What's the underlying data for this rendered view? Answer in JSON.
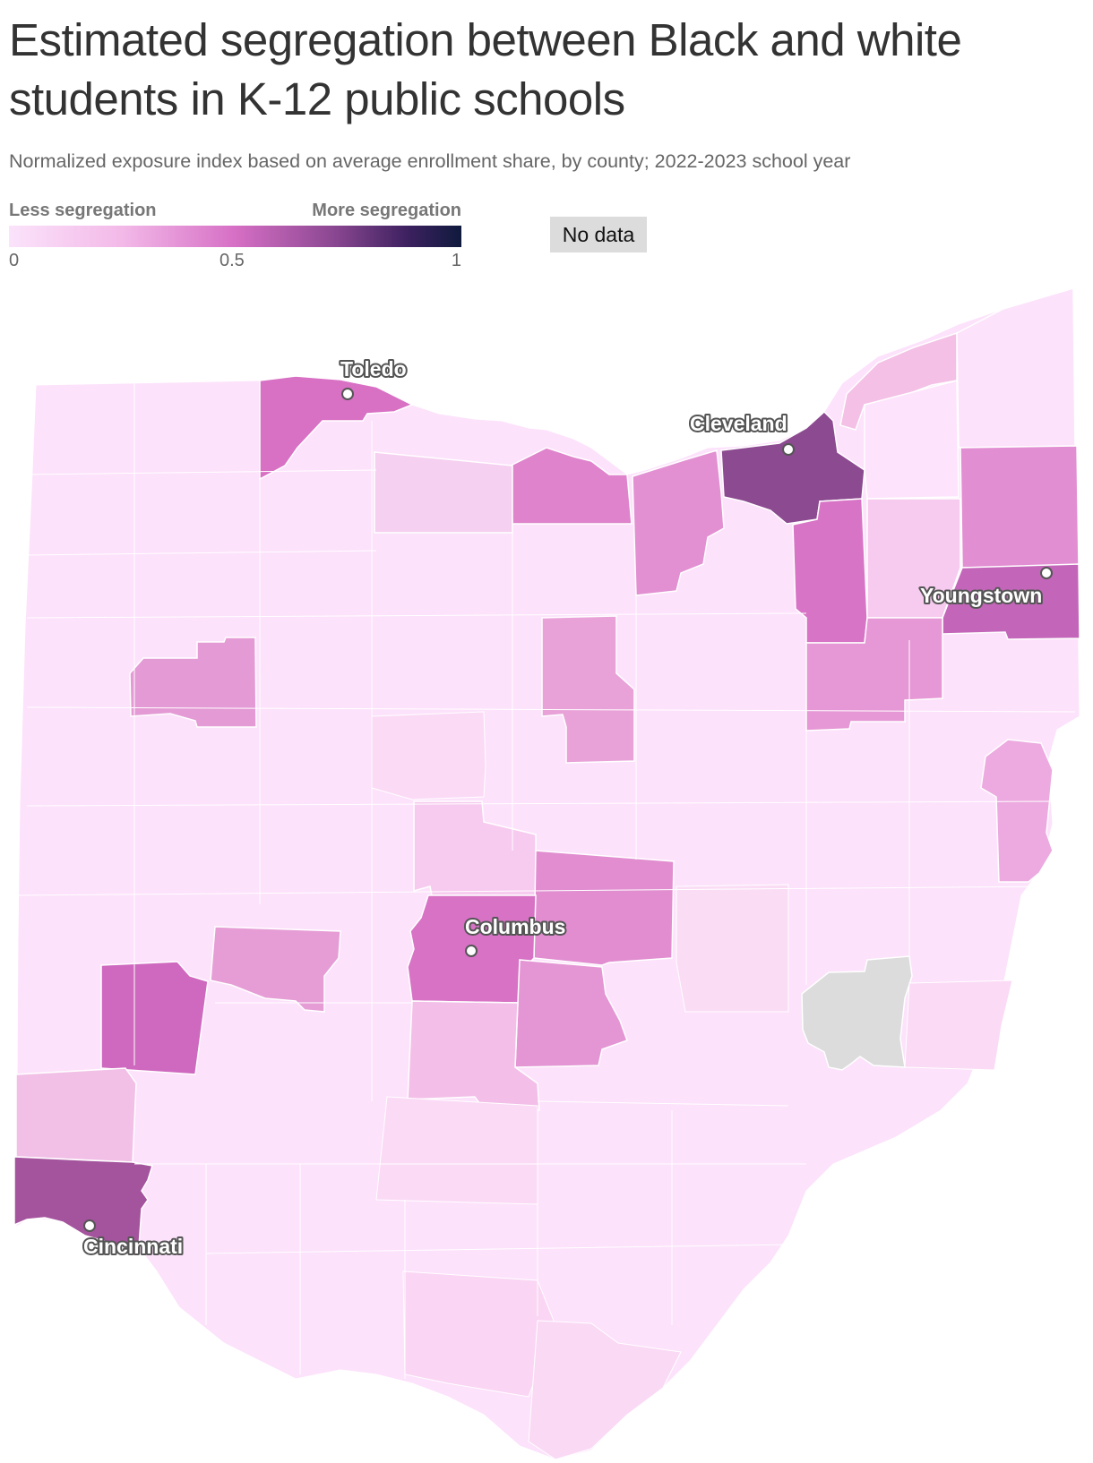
{
  "title": "Estimated segregation between Black and white students in K-12 public schools",
  "subtitle": "Normalized exposure index based on average enrollment share, by county; 2022-2023 school year",
  "legend": {
    "low_label": "Less segregation",
    "high_label": "More segregation",
    "ticks": [
      "0",
      "0.5",
      "1"
    ],
    "scale_min": 0,
    "scale_max": 1,
    "scale_colors": [
      "#fbe3fb",
      "#f3b9e8",
      "#d66fc5",
      "#8a4791",
      "#3d2160",
      "#0f1a3d"
    ],
    "no_data_label": "No data",
    "no_data_color": "#dcdcdc"
  },
  "map": {
    "state": "Ohio",
    "counties": [
      {
        "id": "lucas",
        "value": 0.45,
        "color": "#d870c4"
      },
      {
        "id": "ottawa",
        "value": 0.05,
        "color": "#fce2fb"
      },
      {
        "id": "sandusky",
        "value": 0.15,
        "color": "#f6d0f1"
      },
      {
        "id": "erie",
        "value": 0.4,
        "color": "#df84cc"
      },
      {
        "id": "lorain",
        "value": 0.35,
        "color": "#e290d2"
      },
      {
        "id": "cuyahoga",
        "value": 0.7,
        "color": "#8c4a90"
      },
      {
        "id": "lake",
        "value": 0.2,
        "color": "#f4c0e6"
      },
      {
        "id": "ashtabula",
        "value": 0.05,
        "color": "#fce2fb"
      },
      {
        "id": "geauga",
        "value": 0.05,
        "color": "#fde3fb"
      },
      {
        "id": "trumbull",
        "value": 0.35,
        "color": "#e28ed2"
      },
      {
        "id": "mahoning",
        "value": 0.5,
        "color": "#c366b9"
      },
      {
        "id": "portage",
        "value": 0.15,
        "color": "#f7caef"
      },
      {
        "id": "summit",
        "value": 0.45,
        "color": "#d874c6"
      },
      {
        "id": "stark",
        "value": 0.3,
        "color": "#e697d5"
      },
      {
        "id": "allen",
        "value": 0.3,
        "color": "#e49ad5"
      },
      {
        "id": "richland",
        "value": 0.3,
        "color": "#e8a2d8"
      },
      {
        "id": "franklin",
        "value": 0.45,
        "color": "#d772c5"
      },
      {
        "id": "licking",
        "value": 0.35,
        "color": "#e18dd0"
      },
      {
        "id": "fairfield",
        "value": 0.3,
        "color": "#e496d4"
      },
      {
        "id": "montgomery",
        "value": 0.45,
        "color": "#cf68bf"
      },
      {
        "id": "clark",
        "value": 0.3,
        "color": "#e69dd6"
      },
      {
        "id": "butler",
        "value": 0.15,
        "color": "#f2bfe7"
      },
      {
        "id": "hamilton",
        "value": 0.6,
        "color": "#a4539d"
      },
      {
        "id": "columbiana",
        "value": 0.25,
        "color": "#ecaae0"
      },
      {
        "id": "noble",
        "value": null,
        "color": "#dcdcdc"
      }
    ]
  },
  "cities": [
    {
      "name": "Toledo"
    },
    {
      "name": "Cleveland"
    },
    {
      "name": "Youngstown"
    },
    {
      "name": "Columbus"
    },
    {
      "name": "Cincinnati"
    }
  ]
}
